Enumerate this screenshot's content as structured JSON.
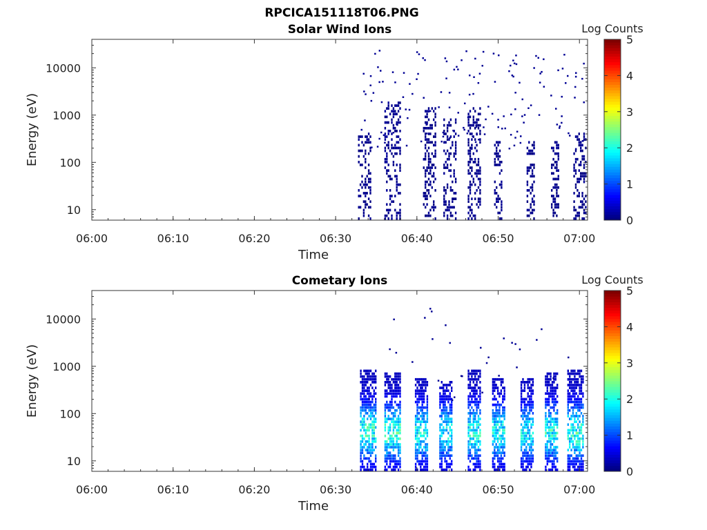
{
  "figure_title": "RPCICA151118T06.PNG",
  "chart_data": [
    {
      "type": "heatmap",
      "title": "Solar Wind Ions",
      "xlabel": "Time",
      "ylabel": "Energy (eV)",
      "x_ticks": [
        "06:00",
        "06:10",
        "06:20",
        "06:30",
        "06:40",
        "06:50",
        "07:00"
      ],
      "y_ticks": [
        "10",
        "100",
        "1000",
        "10000"
      ],
      "y_scale": "log",
      "ylim": [
        6,
        40000
      ],
      "xlim": [
        "06:00",
        "07:01"
      ],
      "colorbar": {
        "label": "Log Counts",
        "ticks": [
          "0",
          "1",
          "2",
          "3",
          "4",
          "5"
        ],
        "range": [
          0,
          5
        ],
        "colormap": "jet"
      },
      "data_start": "06:33",
      "bursts": [
        {
          "center": "06:33.5",
          "width_min": 1.5,
          "emax": 400,
          "level": 0.2
        },
        {
          "center": "06:37",
          "width_min": 2.0,
          "emax": 2000,
          "level": 0.25
        },
        {
          "center": "06:41.5",
          "width_min": 1.5,
          "emax": 1500,
          "level": 0.2
        },
        {
          "center": "06:44",
          "width_min": 1.5,
          "emax": 800,
          "level": 0.2
        },
        {
          "center": "06:47",
          "width_min": 1.5,
          "emax": 1500,
          "level": 0.2
        },
        {
          "center": "06:50",
          "width_min": 1.0,
          "emax": 300,
          "level": 0.2
        },
        {
          "center": "06:54",
          "width_min": 1.0,
          "emax": 300,
          "level": 0.2
        },
        {
          "center": "06:57",
          "width_min": 1.0,
          "emax": 300,
          "level": 0.2
        },
        {
          "center": "07:00",
          "width_min": 1.5,
          "emax": 400,
          "level": 0.2
        }
      ],
      "sparse_max": 25000
    },
    {
      "type": "heatmap",
      "title": "Cometary Ions",
      "xlabel": "Time",
      "ylabel": "Energy (eV)",
      "x_ticks": [
        "06:00",
        "06:10",
        "06:20",
        "06:30",
        "06:40",
        "06:50",
        "07:00"
      ],
      "y_ticks": [
        "10",
        "100",
        "1000",
        "10000"
      ],
      "y_scale": "log",
      "ylim": [
        6,
        40000
      ],
      "xlim": [
        "06:00",
        "07:01"
      ],
      "colorbar": {
        "label": "Log Counts",
        "ticks": [
          "0",
          "1",
          "2",
          "3",
          "4",
          "5"
        ],
        "range": [
          0,
          5
        ],
        "colormap": "jet"
      },
      "data_start": "06:33",
      "bursts": [
        {
          "center": "06:34",
          "width_min": 2.0,
          "emax": 800,
          "level": 1.9
        },
        {
          "center": "06:37",
          "width_min": 2.0,
          "emax": 700,
          "level": 1.9
        },
        {
          "center": "06:40.5",
          "width_min": 1.5,
          "emax": 600,
          "level": 1.7
        },
        {
          "center": "06:43.5",
          "width_min": 1.5,
          "emax": 500,
          "level": 1.6
        },
        {
          "center": "06:47",
          "width_min": 1.5,
          "emax": 900,
          "level": 1.8
        },
        {
          "center": "06:50",
          "width_min": 1.5,
          "emax": 600,
          "level": 1.7
        },
        {
          "center": "06:53.5",
          "width_min": 1.5,
          "emax": 600,
          "level": 1.6
        },
        {
          "center": "06:56.5",
          "width_min": 1.5,
          "emax": 700,
          "level": 1.8
        },
        {
          "center": "06:59.5",
          "width_min": 2.0,
          "emax": 900,
          "level": 1.9
        }
      ],
      "sparse_max": 18000
    }
  ]
}
